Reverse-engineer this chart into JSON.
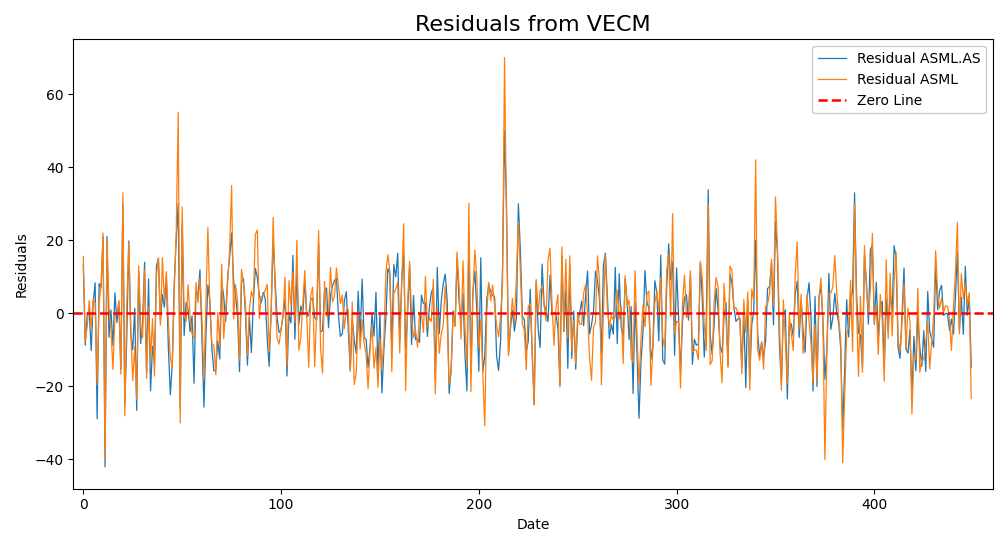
{
  "title": "Residuals from VECM",
  "xlabel": "Date",
  "ylabel": "Residuals",
  "line1_label": "Residual ASML.AS",
  "line2_label": "Residual ASML",
  "zeroline_label": "Zero Line",
  "line1_color": "#1f77b4",
  "line2_color": "#ff7f0e",
  "zeroline_color": "red",
  "figsize": [
    10.08,
    5.47
  ],
  "dpi": 100,
  "seed": 7,
  "n_points": 450,
  "title_fontsize": 16,
  "xlim": [
    -5,
    460
  ],
  "ylim": [
    -48,
    75
  ],
  "linewidth": 0.9,
  "zeroline_linewidth": 1.8
}
